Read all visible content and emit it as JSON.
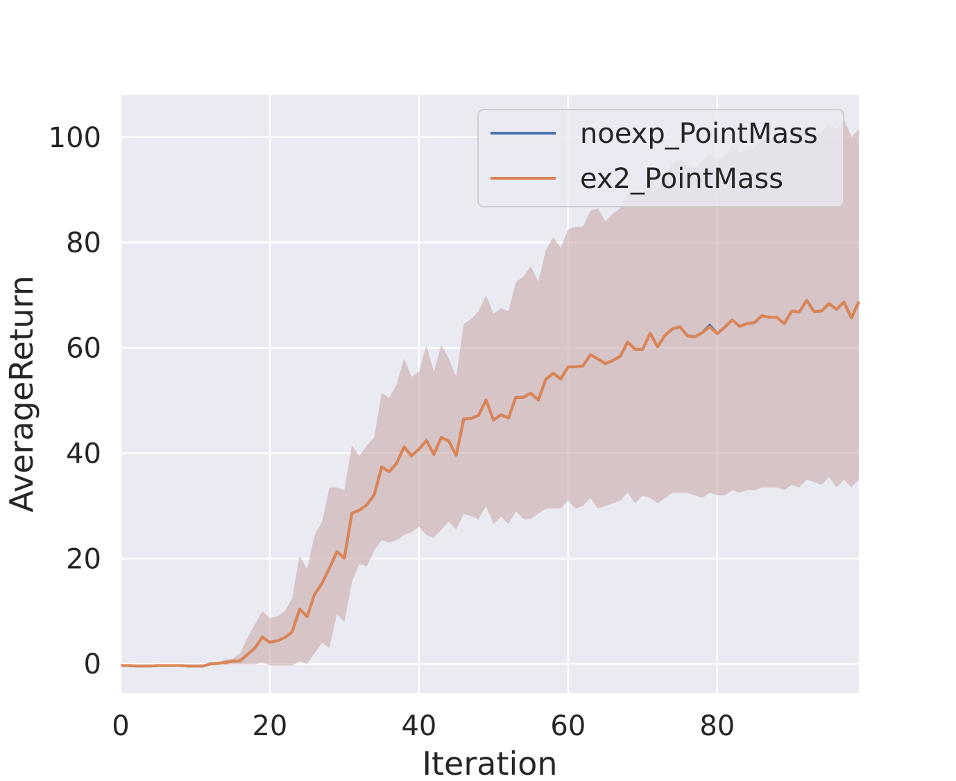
{
  "chart_data": {
    "type": "line",
    "xlabel": "Iteration",
    "ylabel": "AverageReturn",
    "xlim": [
      0,
      99
    ],
    "ylim": [
      -5.5,
      108
    ],
    "x_ticks": [
      0,
      20,
      40,
      60,
      80
    ],
    "y_ticks": [
      0,
      20,
      40,
      60,
      80,
      100
    ],
    "grid": true,
    "legend_position": "top-right",
    "x": [
      0,
      1,
      2,
      3,
      4,
      5,
      6,
      7,
      8,
      9,
      10,
      11,
      12,
      13,
      14,
      15,
      16,
      17,
      18,
      19,
      20,
      21,
      22,
      23,
      24,
      25,
      26,
      27,
      28,
      29,
      30,
      31,
      32,
      33,
      34,
      35,
      36,
      37,
      38,
      39,
      40,
      41,
      42,
      43,
      44,
      45,
      46,
      47,
      48,
      49,
      50,
      51,
      52,
      53,
      54,
      55,
      56,
      57,
      58,
      59,
      60,
      61,
      62,
      63,
      64,
      65,
      66,
      67,
      68,
      69,
      70,
      71,
      72,
      73,
      74,
      75,
      76,
      77,
      78,
      79,
      80,
      81,
      82,
      83,
      84,
      85,
      86,
      87,
      88,
      89,
      90,
      91,
      92,
      93,
      94,
      95,
      96,
      97,
      98,
      99
    ],
    "series": [
      {
        "name": "noexp_PointMass",
        "color": "#4c72b0",
        "values": [
          -0.3,
          -0.3,
          -0.4,
          -0.4,
          -0.4,
          -0.3,
          -0.3,
          -0.3,
          -0.3,
          -0.4,
          -0.4,
          -0.4,
          0.0,
          0.1,
          0.3,
          0.5,
          0.6,
          1.8,
          3.0,
          5.1,
          4.1,
          4.4,
          5.0,
          6.1,
          10.4,
          9.0,
          13.2,
          15.3,
          18.2,
          21.3,
          20.1,
          28.6,
          29.2,
          30.2,
          32.1,
          37.4,
          36.5,
          38.1,
          41.2,
          39.5,
          40.8,
          42.4,
          39.8,
          43.0,
          42.3,
          39.6,
          46.5,
          46.6,
          47.2,
          50.1,
          46.3,
          47.3,
          46.7,
          50.6,
          50.6,
          51.4,
          50.1,
          54.0,
          55.2,
          54.1,
          56.4,
          56.4,
          56.6,
          58.7,
          57.9,
          57.0,
          57.6,
          58.4,
          61.1,
          59.7,
          59.7,
          62.8,
          60.2,
          62.4,
          63.6,
          64.0,
          62.3,
          62.1,
          62.9,
          64.3,
          62.7,
          63.9,
          65.3,
          64.1,
          64.6,
          64.8,
          66.1,
          65.8,
          65.8,
          64.6,
          67.0,
          66.8,
          69.0,
          66.9,
          67.0,
          68.4,
          67.3,
          68.7,
          65.7,
          68.8
        ]
      },
      {
        "name": "ex2_PointMass",
        "color": "#dd8452",
        "values": [
          -0.3,
          -0.3,
          -0.4,
          -0.4,
          -0.4,
          -0.3,
          -0.3,
          -0.3,
          -0.3,
          -0.4,
          -0.4,
          -0.4,
          0.0,
          0.1,
          0.3,
          0.5,
          0.6,
          1.8,
          3.0,
          5.1,
          4.1,
          4.4,
          5.0,
          6.1,
          10.4,
          9.0,
          13.2,
          15.3,
          18.2,
          21.3,
          20.1,
          28.6,
          29.2,
          30.2,
          32.1,
          37.4,
          36.5,
          38.1,
          41.2,
          39.5,
          40.8,
          42.4,
          39.8,
          43.0,
          42.3,
          39.6,
          46.5,
          46.6,
          47.2,
          50.1,
          46.3,
          47.3,
          46.7,
          50.6,
          50.6,
          51.4,
          50.1,
          54.0,
          55.2,
          54.1,
          56.4,
          56.4,
          56.6,
          58.7,
          57.9,
          57.0,
          57.6,
          58.4,
          61.1,
          59.7,
          59.7,
          62.8,
          60.2,
          62.4,
          63.6,
          64.0,
          62.3,
          62.1,
          62.9,
          64.0,
          62.7,
          63.9,
          65.3,
          64.1,
          64.6,
          64.8,
          66.1,
          65.8,
          65.8,
          64.6,
          67.0,
          66.8,
          69.0,
          66.9,
          67.0,
          68.4,
          67.3,
          68.7,
          65.7,
          68.8
        ],
        "band_upper": [
          -0.3,
          -0.3,
          -0.4,
          -0.4,
          -0.4,
          -0.3,
          -0.3,
          -0.3,
          -0.3,
          -0.4,
          -0.4,
          -0.4,
          0.0,
          0.1,
          0.9,
          1.0,
          2.0,
          5.0,
          7.5,
          10.0,
          8.7,
          9.0,
          10.0,
          12.5,
          20.5,
          18.0,
          24.5,
          27.0,
          33.5,
          33.5,
          33.0,
          41.5,
          39.5,
          41.5,
          43.0,
          51.5,
          50.5,
          53.0,
          58.0,
          54.5,
          55.5,
          60.5,
          55.5,
          60.5,
          58.0,
          54.5,
          64.5,
          65.5,
          67.0,
          70.0,
          66.5,
          67.5,
          67.0,
          72.5,
          73.5,
          75.5,
          72.5,
          78.5,
          81.0,
          79.0,
          82.5,
          83.0,
          83.0,
          86.0,
          86.5,
          84.0,
          85.5,
          86.5,
          89.5,
          89.0,
          89.0,
          92.5,
          90.0,
          92.5,
          95.0,
          96.0,
          94.5,
          94.0,
          95.5,
          97.0,
          95.5,
          96.5,
          98.5,
          97.0,
          97.5,
          98.0,
          99.5,
          99.5,
          99.5,
          98.5,
          101.0,
          100.5,
          102.5,
          100.5,
          101.0,
          102.5,
          101.5,
          103.5,
          100.0,
          101.5
        ],
        "band_lower": [
          -0.3,
          -0.3,
          -0.4,
          -0.4,
          -0.4,
          -0.3,
          -0.3,
          -0.3,
          -0.3,
          -0.4,
          -0.4,
          -0.4,
          0.0,
          0.1,
          -0.2,
          -0.1,
          -0.1,
          -0.1,
          -0.1,
          0.3,
          -0.3,
          -0.3,
          -0.3,
          -0.3,
          0.5,
          0.0,
          2.0,
          4.0,
          3.0,
          9.5,
          8.0,
          15.5,
          19.0,
          18.5,
          21.5,
          23.5,
          23.0,
          23.5,
          24.5,
          25.0,
          26.0,
          24.5,
          24.0,
          25.5,
          27.0,
          25.5,
          28.5,
          28.0,
          27.5,
          30.0,
          26.5,
          28.0,
          26.5,
          29.0,
          27.5,
          27.5,
          28.5,
          29.5,
          29.5,
          29.5,
          31.0,
          29.5,
          30.0,
          31.5,
          29.5,
          30.0,
          30.5,
          31.0,
          32.5,
          30.5,
          32.0,
          31.5,
          30.5,
          31.5,
          32.5,
          32.5,
          32.5,
          32.0,
          31.5,
          32.5,
          32.0,
          32.0,
          33.0,
          32.5,
          33.0,
          33.0,
          33.5,
          33.5,
          33.5,
          33.0,
          34.0,
          33.5,
          35.0,
          34.5,
          34.0,
          35.5,
          33.5,
          35.0,
          33.5,
          35.0
        ]
      }
    ]
  }
}
